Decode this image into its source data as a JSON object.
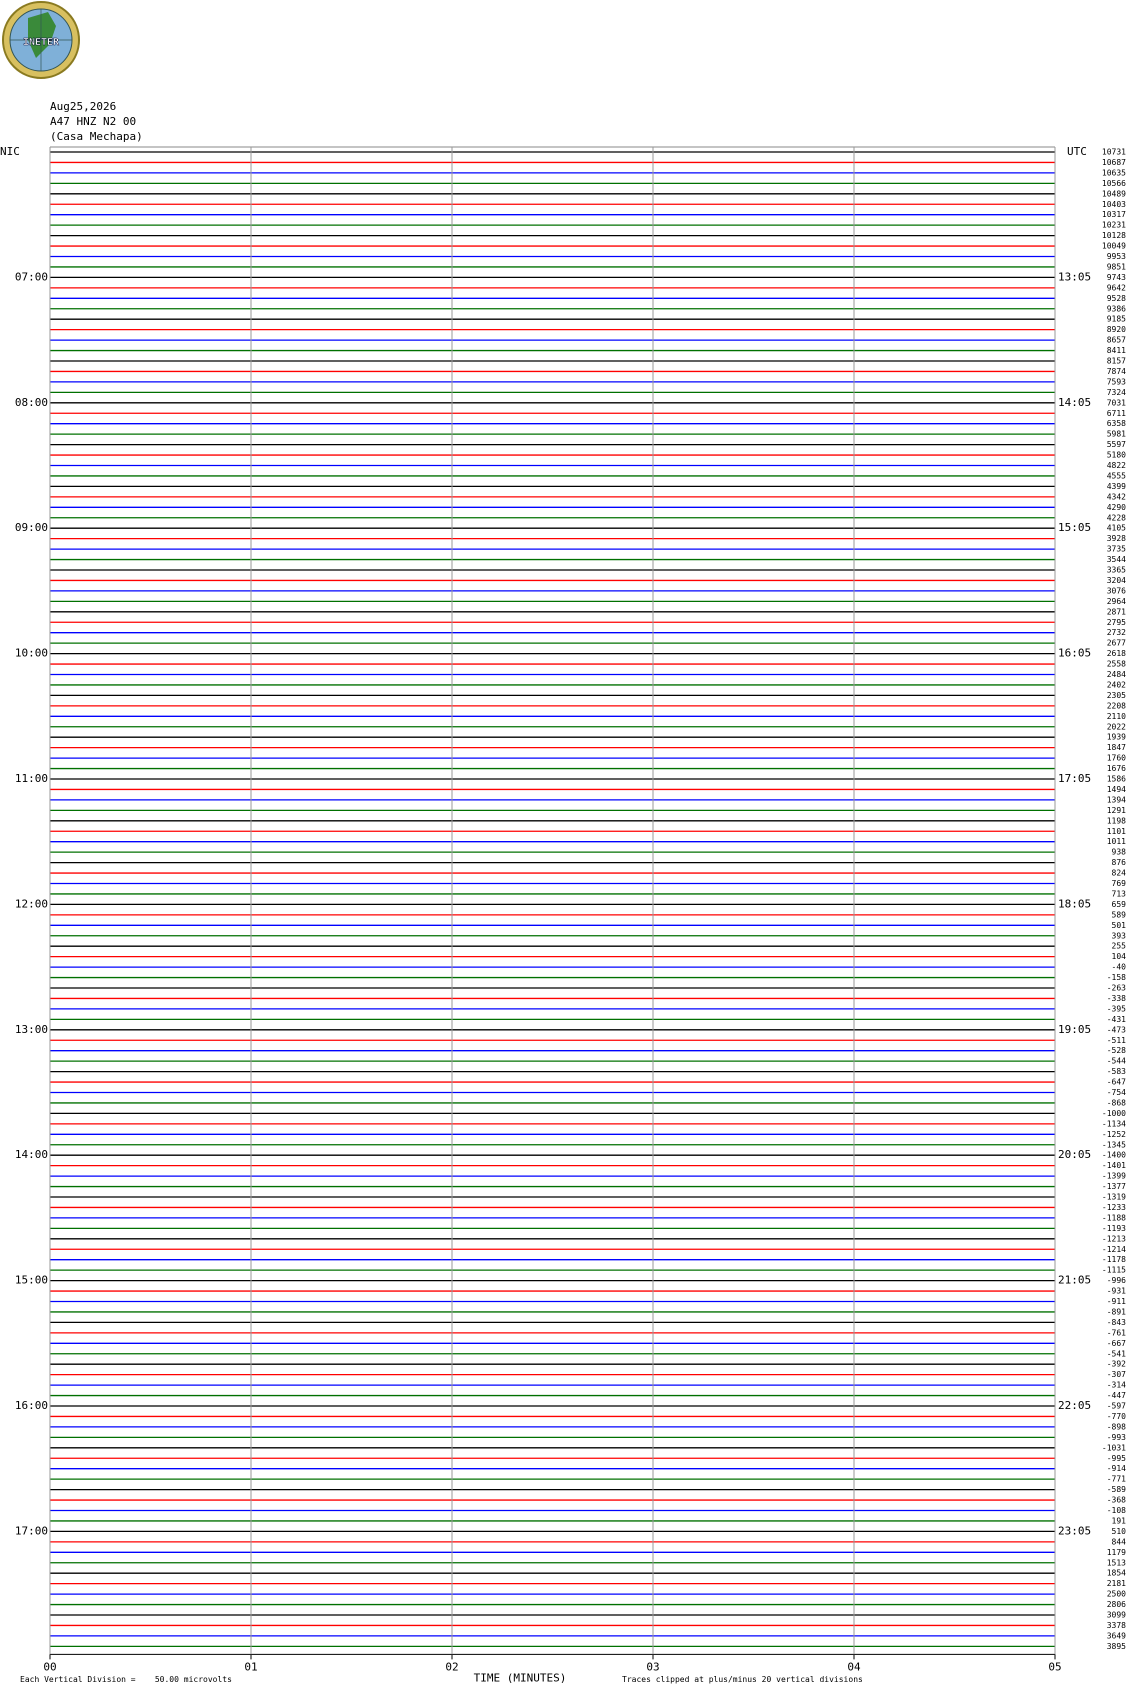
{
  "chart_data": {
    "type": "helicorder",
    "logo": "INETER",
    "date": "Aug25,2026",
    "station": "A47 HNZ N2 00",
    "site": "(Casa Mechapa)",
    "left_axis_title": "NIC",
    "right_axis_title": "UTC",
    "left_time_labels": [
      "07:00",
      "08:00",
      "09:00",
      "10:00",
      "11:00",
      "12:00",
      "13:00",
      "14:00",
      "15:00",
      "16:00",
      "17:00"
    ],
    "right_time_labels": [
      "13:05",
      "14:05",
      "15:05",
      "16:05",
      "17:05",
      "18:05",
      "19:05",
      "20:05",
      "21:05",
      "22:05",
      "23:05"
    ],
    "trace_labels": [
      10731,
      10687,
      10635,
      10566,
      10489,
      10403,
      10317,
      10231,
      10128,
      10049,
      9953,
      9851,
      9743,
      9642,
      9528,
      9386,
      9185,
      8920,
      8657,
      8411,
      8157,
      7874,
      7593,
      7324,
      7031,
      6711,
      6358,
      5981,
      5597,
      5180,
      4822,
      4555,
      4399,
      4342,
      4290,
      4228,
      4105,
      3928,
      3735,
      3544,
      3365,
      3204,
      3076,
      2964,
      2871,
      2795,
      2732,
      2677,
      2618,
      2558,
      2484,
      2402,
      2305,
      2208,
      2110,
      2022,
      1939,
      1847,
      1760,
      1676,
      1586,
      1494,
      1394,
      1291,
      1198,
      1101,
      1011,
      938,
      876,
      824,
      769,
      713,
      659,
      589,
      501,
      393,
      255,
      104,
      -40,
      -158,
      -263,
      -338,
      -395,
      -431,
      -473,
      -511,
      -528,
      -544,
      -583,
      -647,
      -754,
      -868,
      -1000,
      -1134,
      -1252,
      -1345,
      -1400,
      -1401,
      -1399,
      -1377,
      -1319,
      -1233,
      -1188,
      -1193,
      -1213,
      -1214,
      -1178,
      -1115,
      -996,
      -931,
      -911,
      -891,
      -843,
      -761,
      -667,
      -541,
      -392,
      -307,
      -314,
      -447,
      -597,
      -770,
      -898,
      -993,
      -1031,
      -995,
      -914,
      -771,
      -589,
      -368,
      -108,
      191,
      510,
      844,
      1179,
      1513,
      1854,
      2181,
      2500,
      2806,
      3099,
      3378,
      3649,
      3895
    ],
    "trace_colors": [
      "#000000",
      "#ff0000",
      "#0000ff",
      "#007000"
    ],
    "xlim": [
      0,
      5
    ],
    "xticks": [
      {
        "value": 0,
        "label": "00"
      },
      {
        "value": 1,
        "label": "01"
      },
      {
        "value": 2,
        "label": "02"
      },
      {
        "value": 3,
        "label": "03"
      },
      {
        "value": 4,
        "label": "04"
      },
      {
        "value": 5,
        "label": "05"
      }
    ],
    "xlabel": "TIME (MINUTES)",
    "scale_note": "Each Vertical Division =    50.00 microvolts",
    "clip_note": "Traces clipped at plus/minus 20 vertical divisions",
    "grid": true
  }
}
